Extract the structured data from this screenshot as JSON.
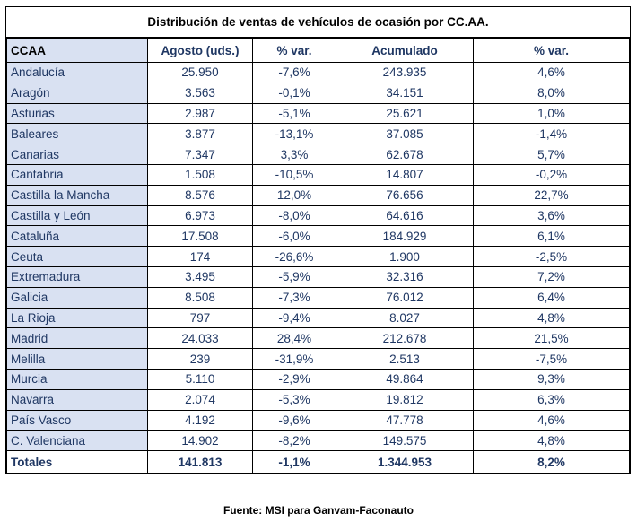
{
  "title": "Distribución de ventas de vehículos de ocasión por CC.AA.",
  "headers": [
    "CCAA",
    "Agosto (uds.)",
    "% var.",
    "Acumulado",
    "% var."
  ],
  "rows": [
    [
      "Andalucía",
      "25.950",
      "-7,6%",
      "243.935",
      "4,6%"
    ],
    [
      "Aragón",
      "3.563",
      "-0,1%",
      "34.151",
      "8,0%"
    ],
    [
      "Asturias",
      "2.987",
      "-5,1%",
      "25.621",
      "1,0%"
    ],
    [
      "Baleares",
      "3.877",
      "-13,1%",
      "37.085",
      "-1,4%"
    ],
    [
      "Canarias",
      "7.347",
      "3,3%",
      "62.678",
      "5,7%"
    ],
    [
      "Cantabria",
      "1.508",
      "-10,5%",
      "14.807",
      "-0,2%"
    ],
    [
      "Castilla la Mancha",
      "8.576",
      "12,0%",
      "76.656",
      "22,7%"
    ],
    [
      "Castilla y León",
      "6.973",
      "-8,0%",
      "64.616",
      "3,6%"
    ],
    [
      "Cataluña",
      "17.508",
      "-6,0%",
      "184.929",
      "6,1%"
    ],
    [
      "Ceuta",
      "174",
      "-26,6%",
      "1.900",
      "-2,5%"
    ],
    [
      "Extremadura",
      "3.495",
      "-5,9%",
      "32.316",
      "7,2%"
    ],
    [
      "Galicia",
      "8.508",
      "-7,3%",
      "76.012",
      "6,4%"
    ],
    [
      "La Rioja",
      "797",
      "-9,4%",
      "8.027",
      "4,8%"
    ],
    [
      "Madrid",
      "24.033",
      "28,4%",
      "212.678",
      "21,5%"
    ],
    [
      "Melilla",
      "239",
      "-31,9%",
      "2.513",
      "-7,5%"
    ],
    [
      "Murcia",
      "5.110",
      "-2,9%",
      "49.864",
      "9,3%"
    ],
    [
      "Navarra",
      "2.074",
      "-5,3%",
      "19.812",
      "6,3%"
    ],
    [
      "País Vasco",
      "4.192",
      "-9,6%",
      "47.778",
      "4,6%"
    ],
    [
      "C. Valenciana",
      "14.902",
      "-8,2%",
      "149.575",
      "4,8%"
    ]
  ],
  "totals": [
    "Totales",
    "141.813",
    "-1,1%",
    "1.344.953",
    "8,2%"
  ],
  "source": "Fuente: MSI para Ganvam-Faconauto",
  "colors": {
    "text_blue": "#1f3763",
    "name_fill": "#d9e1f2"
  }
}
